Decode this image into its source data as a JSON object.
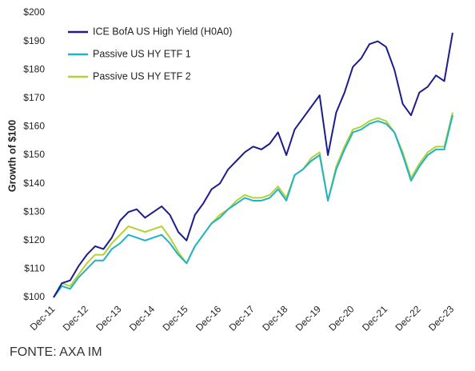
{
  "chart_data": {
    "type": "line",
    "y_label": "Growth of $100",
    "source": "FONTE: AXA IM",
    "categories": [
      "Dec-11",
      null,
      null,
      null,
      "Dec-12",
      null,
      null,
      null,
      "Dec-13",
      null,
      null,
      null,
      "Dec-14",
      null,
      null,
      null,
      "Dec-15",
      null,
      null,
      null,
      "Dec-16",
      null,
      null,
      null,
      "Dec-17",
      null,
      null,
      null,
      "Dec-18",
      null,
      null,
      null,
      "Dec-19",
      null,
      null,
      null,
      "Dec-20",
      null,
      null,
      null,
      "Dec-21",
      null,
      null,
      null,
      "Dec-22",
      null,
      null,
      null,
      "Dec-23"
    ],
    "series": [
      {
        "name": "ICE BofA US High Yield (H0A0)",
        "color": "#1c1c8f",
        "values": [
          100,
          105,
          106,
          111,
          115,
          118,
          117,
          121,
          127,
          130,
          131,
          128,
          130,
          132,
          129,
          123,
          120,
          129,
          133,
          138,
          140,
          145,
          148,
          151,
          153,
          152,
          154,
          158,
          150,
          159,
          163,
          167,
          171,
          150,
          165,
          172,
          181,
          184,
          189,
          190,
          188,
          180,
          168,
          164,
          172,
          174,
          178,
          176,
          193
        ]
      },
      {
        "name": "Passive US HY ETF 1",
        "color": "#1fb3c8",
        "values": [
          100,
          104,
          103,
          107,
          110,
          113,
          113,
          117,
          119,
          122,
          121,
          120,
          121,
          122,
          119,
          115,
          112,
          118,
          122,
          126,
          128,
          131,
          133,
          135,
          134,
          134,
          135,
          138,
          134,
          143,
          145,
          148,
          150,
          134,
          145,
          152,
          158,
          159,
          161,
          162,
          161,
          158,
          150,
          141,
          146,
          150,
          152,
          152,
          164
        ]
      },
      {
        "name": "Passive US HY ETF 2",
        "color": "#b3d236",
        "values": [
          100,
          105,
          104,
          108,
          112,
          115,
          115,
          119,
          122,
          125,
          124,
          123,
          124,
          125,
          121,
          116,
          112,
          118,
          122,
          126,
          129,
          131,
          134,
          136,
          135,
          135,
          136,
          139,
          135,
          143,
          145,
          149,
          151,
          134,
          146,
          153,
          159,
          160,
          162,
          163,
          162,
          158,
          151,
          142,
          147,
          151,
          153,
          153,
          165
        ]
      }
    ],
    "ylim": [
      100,
      200
    ],
    "yticks": [
      {
        "value": 100,
        "label": "$100"
      },
      {
        "value": 110,
        "label": "$110"
      },
      {
        "value": 120,
        "label": "$120"
      },
      {
        "value": 130,
        "label": "$130"
      },
      {
        "value": 140,
        "label": "$140"
      },
      {
        "value": 150,
        "label": "$150"
      },
      {
        "value": 160,
        "label": "$160"
      },
      {
        "value": 170,
        "label": "$170"
      },
      {
        "value": 180,
        "label": "$180"
      },
      {
        "value": 190,
        "label": "$190"
      },
      {
        "value": 200,
        "label": "$200"
      }
    ],
    "grid": false
  }
}
